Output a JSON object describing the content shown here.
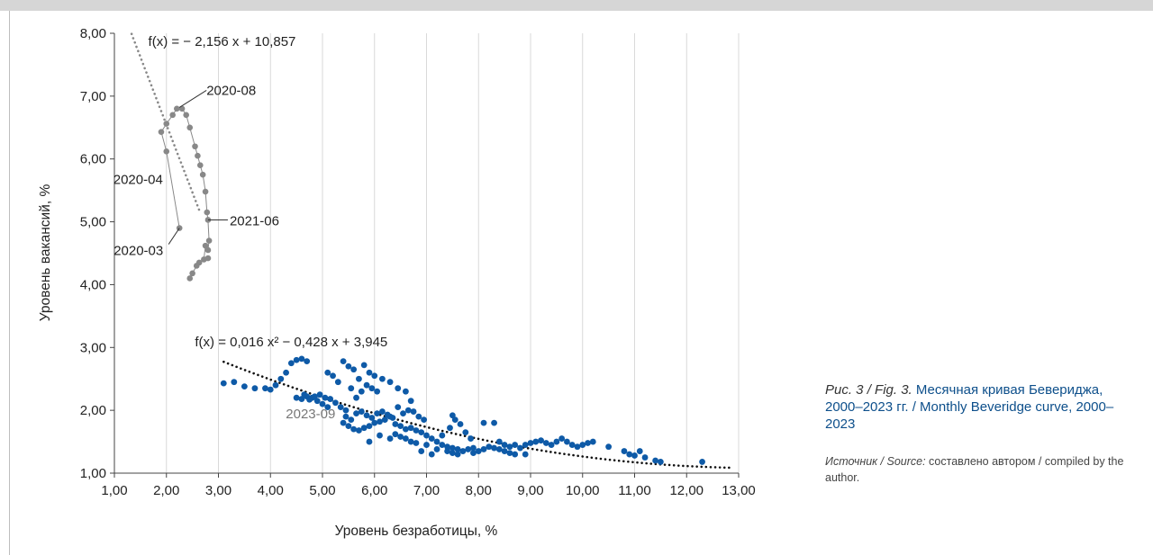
{
  "caption": {
    "fig_label": "Рис. 3 / Fig. 3.",
    "title": "Месячная кривая Бевериджа, 2000–2023 гг. / Monthly Beveridge curve, 2000–2023"
  },
  "source": {
    "lead": "Источник / Source:",
    "text": "составлено автором / compiled by the author."
  },
  "chart_data": {
    "type": "scatter",
    "xlabel": "Уровень безработицы, %",
    "ylabel": "Уровень вакансий, %",
    "xlim": [
      1,
      13
    ],
    "ylim": [
      1,
      8
    ],
    "x_ticks": [
      "1,00",
      "2,00",
      "3,00",
      "4,00",
      "5,00",
      "6,00",
      "7,00",
      "8,00",
      "9,00",
      "10,00",
      "11,00",
      "12,00",
      "13,00"
    ],
    "y_ticks": [
      "1,00",
      "2,00",
      "3,00",
      "4,00",
      "5,00",
      "6,00",
      "7,00",
      "8,00"
    ],
    "grid": "vertical",
    "colors": {
      "series_main": "#0e5aa7",
      "series_covid": "#888888",
      "trend_covid": "#888888",
      "trend_main": "#111111"
    },
    "trendlines": [
      {
        "label": "f(x) = − 2,156 x + 10,857",
        "kind": "linear",
        "a": -2.156,
        "b": 10.857,
        "x_range": [
          1.33,
          2.65
        ]
      },
      {
        "label": "f(x) = 0,016 x² − 0,428 x + 3,945",
        "kind": "quadratic",
        "a": 0.016,
        "b": -0.428,
        "c": 3.945,
        "x_range": [
          3.1,
          12.9
        ]
      }
    ],
    "annotations": [
      {
        "text": "2020-08",
        "x": 2.25,
        "y": 6.82,
        "grey": false
      },
      {
        "text": "2020-04",
        "x": 2.0,
        "y": 6.12,
        "grey": false
      },
      {
        "text": "2020-03",
        "x": 2.25,
        "y": 4.9,
        "grey": false
      },
      {
        "text": "2021-06",
        "x": 2.8,
        "y": 5.03,
        "grey": false
      },
      {
        "text": "2023-09",
        "x": 3.1,
        "y": 2.43,
        "grey": true
      }
    ],
    "series": [
      {
        "name": "",
        "connected": true,
        "points": [
          [
            2.25,
            4.9
          ],
          [
            2.0,
            6.12
          ],
          [
            1.9,
            6.43
          ],
          [
            2.0,
            6.56
          ],
          [
            2.12,
            6.7
          ],
          [
            2.2,
            6.8
          ],
          [
            2.3,
            6.8
          ],
          [
            2.38,
            6.7
          ],
          [
            2.45,
            6.5
          ],
          [
            2.55,
            6.2
          ],
          [
            2.6,
            6.05
          ],
          [
            2.65,
            5.9
          ],
          [
            2.7,
            5.75
          ],
          [
            2.75,
            5.48
          ],
          [
            2.78,
            5.15
          ],
          [
            2.8,
            5.03
          ],
          [
            2.82,
            4.7
          ],
          [
            2.8,
            4.55
          ],
          [
            2.75,
            4.62
          ],
          [
            2.72,
            4.4
          ],
          [
            2.8,
            4.42
          ],
          [
            2.63,
            4.35
          ],
          [
            2.58,
            4.3
          ],
          [
            2.5,
            4.18
          ],
          [
            2.45,
            4.1
          ]
        ]
      },
      {
        "name": "",
        "connected": false,
        "points": [
          [
            3.1,
            2.43
          ],
          [
            3.3,
            2.45
          ],
          [
            3.5,
            2.38
          ],
          [
            3.7,
            2.35
          ],
          [
            3.9,
            2.35
          ],
          [
            4.0,
            2.33
          ],
          [
            4.1,
            2.4
          ],
          [
            4.2,
            2.5
          ],
          [
            4.3,
            2.6
          ],
          [
            4.4,
            2.75
          ],
          [
            4.5,
            2.8
          ],
          [
            4.6,
            2.82
          ],
          [
            4.7,
            2.78
          ],
          [
            4.5,
            2.2
          ],
          [
            4.6,
            2.18
          ],
          [
            4.7,
            2.22
          ],
          [
            4.8,
            2.2
          ],
          [
            4.9,
            2.15
          ],
          [
            5.0,
            2.1
          ],
          [
            5.1,
            2.05
          ],
          [
            4.65,
            2.25
          ],
          [
            4.75,
            2.17
          ],
          [
            4.85,
            2.22
          ],
          [
            4.95,
            2.25
          ],
          [
            5.05,
            2.2
          ],
          [
            5.15,
            2.18
          ],
          [
            5.25,
            2.12
          ],
          [
            5.35,
            2.05
          ],
          [
            5.45,
            2.0
          ],
          [
            5.1,
            2.6
          ],
          [
            5.2,
            2.55
          ],
          [
            5.3,
            2.45
          ],
          [
            5.4,
            2.78
          ],
          [
            5.5,
            2.7
          ],
          [
            5.6,
            2.65
          ],
          [
            5.7,
            2.5
          ],
          [
            5.8,
            2.72
          ],
          [
            5.9,
            2.6
          ],
          [
            6.0,
            2.55
          ],
          [
            5.55,
            2.35
          ],
          [
            5.65,
            2.2
          ],
          [
            5.75,
            2.3
          ],
          [
            5.85,
            2.4
          ],
          [
            5.95,
            2.35
          ],
          [
            6.05,
            2.3
          ],
          [
            6.15,
            2.5
          ],
          [
            6.3,
            2.45
          ],
          [
            6.45,
            2.35
          ],
          [
            6.6,
            2.3
          ],
          [
            6.7,
            2.15
          ],
          [
            5.4,
            1.8
          ],
          [
            5.5,
            1.75
          ],
          [
            5.6,
            1.7
          ],
          [
            5.7,
            1.68
          ],
          [
            5.8,
            1.72
          ],
          [
            5.9,
            1.75
          ],
          [
            6.0,
            1.8
          ],
          [
            6.1,
            1.82
          ],
          [
            6.2,
            1.85
          ],
          [
            6.3,
            1.9
          ],
          [
            5.45,
            1.9
          ],
          [
            5.55,
            1.85
          ],
          [
            5.65,
            1.95
          ],
          [
            5.75,
            1.98
          ],
          [
            5.85,
            1.92
          ],
          [
            5.95,
            1.88
          ],
          [
            6.05,
            1.95
          ],
          [
            6.15,
            1.98
          ],
          [
            6.25,
            1.93
          ],
          [
            6.35,
            1.88
          ],
          [
            6.4,
            1.78
          ],
          [
            6.5,
            1.75
          ],
          [
            6.6,
            1.7
          ],
          [
            6.7,
            1.72
          ],
          [
            6.8,
            1.68
          ],
          [
            6.9,
            1.65
          ],
          [
            6.45,
            2.05
          ],
          [
            6.55,
            1.95
          ],
          [
            6.65,
            2.0
          ],
          [
            6.75,
            1.98
          ],
          [
            6.85,
            1.9
          ],
          [
            6.95,
            1.85
          ],
          [
            6.4,
            1.62
          ],
          [
            6.5,
            1.58
          ],
          [
            6.6,
            1.55
          ],
          [
            6.7,
            1.5
          ],
          [
            6.8,
            1.48
          ],
          [
            7.0,
            1.6
          ],
          [
            7.1,
            1.55
          ],
          [
            7.2,
            1.5
          ],
          [
            7.3,
            1.45
          ],
          [
            7.4,
            1.42
          ],
          [
            7.5,
            1.4
          ],
          [
            7.6,
            1.38
          ],
          [
            7.7,
            1.35
          ],
          [
            7.8,
            1.38
          ],
          [
            7.9,
            1.4
          ],
          [
            7.0,
            1.45
          ],
          [
            7.2,
            1.38
          ],
          [
            7.4,
            1.35
          ],
          [
            7.5,
            1.32
          ],
          [
            7.6,
            1.3
          ],
          [
            7.3,
            1.6
          ],
          [
            7.45,
            1.72
          ],
          [
            7.55,
            1.85
          ],
          [
            7.65,
            1.78
          ],
          [
            7.75,
            1.65
          ],
          [
            7.85,
            1.55
          ],
          [
            7.5,
            1.92
          ],
          [
            8.0,
            1.35
          ],
          [
            8.1,
            1.38
          ],
          [
            8.2,
            1.42
          ],
          [
            8.3,
            1.4
          ],
          [
            8.4,
            1.38
          ],
          [
            8.5,
            1.35
          ],
          [
            8.6,
            1.32
          ],
          [
            8.7,
            1.3
          ],
          [
            8.1,
            1.8
          ],
          [
            8.3,
            1.8
          ],
          [
            8.4,
            1.5
          ],
          [
            8.5,
            1.45
          ],
          [
            8.6,
            1.42
          ],
          [
            8.7,
            1.45
          ],
          [
            8.8,
            1.4
          ],
          [
            8.9,
            1.45
          ],
          [
            9.0,
            1.48
          ],
          [
            9.1,
            1.5
          ],
          [
            9.2,
            1.52
          ],
          [
            9.3,
            1.48
          ],
          [
            9.4,
            1.45
          ],
          [
            9.5,
            1.5
          ],
          [
            9.6,
            1.55
          ],
          [
            9.7,
            1.5
          ],
          [
            9.8,
            1.45
          ],
          [
            9.9,
            1.42
          ],
          [
            10.0,
            1.45
          ],
          [
            10.1,
            1.48
          ],
          [
            10.2,
            1.5
          ],
          [
            10.5,
            1.42
          ],
          [
            10.8,
            1.35
          ],
          [
            10.9,
            1.3
          ],
          [
            11.0,
            1.28
          ],
          [
            11.1,
            1.35
          ],
          [
            11.2,
            1.25
          ],
          [
            11.4,
            1.2
          ],
          [
            11.5,
            1.18
          ],
          [
            12.3,
            1.18
          ],
          [
            5.9,
            1.5
          ],
          [
            6.1,
            1.6
          ],
          [
            6.3,
            1.55
          ],
          [
            6.9,
            1.35
          ],
          [
            7.1,
            1.3
          ],
          [
            7.9,
            1.32
          ],
          [
            8.9,
            1.3
          ]
        ]
      }
    ]
  }
}
